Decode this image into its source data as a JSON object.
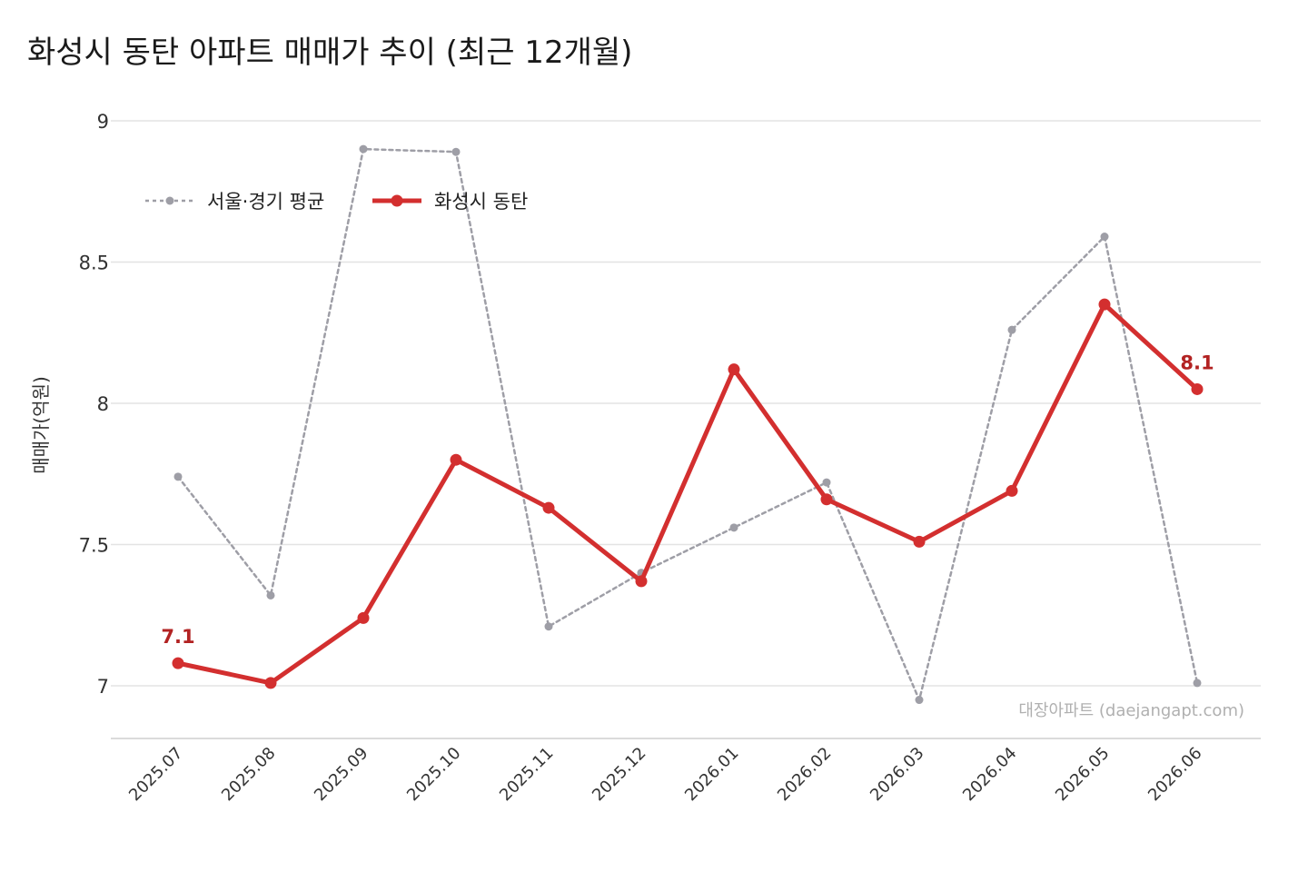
{
  "title": "화성시 동탄 아파트 매매가 추이 (최근 12개월)",
  "watermark": "대장아파트 (daejangapt.com)",
  "colors": {
    "hwaseong": "#d32f2f",
    "avg": "#9e9ea6",
    "endlabel": "#b22222",
    "grid": "#e3e3e3"
  },
  "chart_data": {
    "type": "line",
    "title": "화성시 동탄 아파트 매매가 추이 (최근 12개월)",
    "xlabel": "",
    "ylabel": "매매가(억원)",
    "ylim": [
      6.8,
      9.0
    ],
    "yticks": [
      7,
      7.5,
      8,
      8.5,
      9
    ],
    "ytick_labels": [
      "7",
      "7.5",
      "8",
      "8.5",
      "9"
    ],
    "grid": "horizontal",
    "legend_position": "upper-left",
    "categories": [
      "2025.07",
      "2025.08",
      "2025.09",
      "2025.10",
      "2025.11",
      "2025.12",
      "2026.01",
      "2026.02",
      "2026.03",
      "2026.04",
      "2026.05",
      "2026.06"
    ],
    "series": [
      {
        "name": "서울·경기 평균",
        "style": "dotted",
        "values": [
          7.74,
          7.32,
          8.9,
          8.89,
          7.21,
          7.4,
          7.56,
          7.72,
          6.95,
          8.26,
          8.59,
          7.01
        ]
      },
      {
        "name": "화성시 동탄",
        "style": "solid",
        "values": [
          7.08,
          7.01,
          7.24,
          7.8,
          7.63,
          7.37,
          8.12,
          7.66,
          7.51,
          7.69,
          8.35,
          8.05
        ]
      }
    ],
    "annotations": [
      {
        "series": "화성시 동탄",
        "index": 0,
        "text": "7.1"
      },
      {
        "series": "화성시 동탄",
        "index": 11,
        "text": "8.1"
      }
    ]
  }
}
